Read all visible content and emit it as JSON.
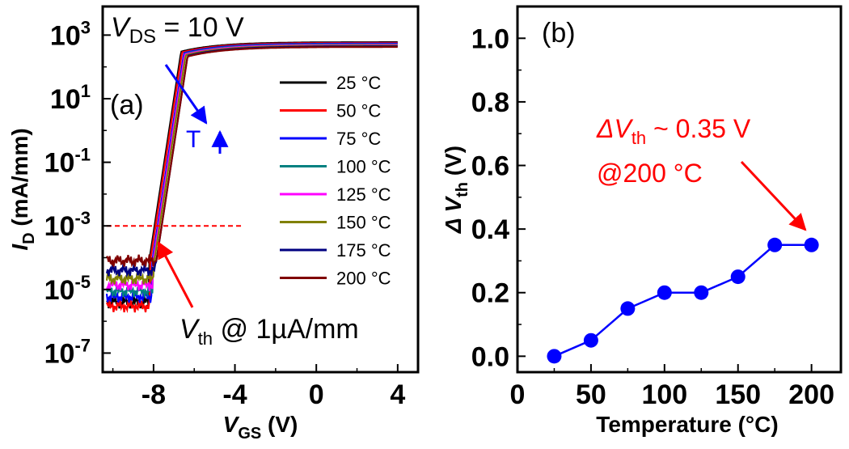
{
  "chart_data": [
    {
      "type": "line",
      "panel_label": "(a)",
      "annotation_vds": {
        "sym": "V",
        "sub": "DS",
        "rest": " = 10 V"
      },
      "annotation_vth": {
        "sym": "V",
        "sub": "th",
        "rest": " @ 1µA/mm"
      },
      "annotation_t": "T",
      "xlabel": {
        "sym": "V",
        "sub": "GS",
        "rest": " (V)"
      },
      "ylabel": {
        "sym": "I",
        "sub": "D",
        "rest": " (mA/mm)"
      },
      "xlim": [
        -10.5,
        5.0
      ],
      "x_ticks": [
        -8,
        -4,
        0,
        4
      ],
      "x_tick_labels": [
        "-8",
        "-4",
        "0",
        "4"
      ],
      "ylim_log10": [
        -7.6,
        3.9
      ],
      "y_ticks_log10": [
        3,
        1,
        -1,
        -3,
        -5,
        -7
      ],
      "y_tick_base": "10",
      "y_tick_exponents": [
        "3",
        "1",
        "-1",
        "-3",
        "-5",
        "-7"
      ],
      "threshold_current": 0.001,
      "model": {
        "x_min": -10.3,
        "x_max": 4.0,
        "Isat": 600,
        "vth_at_25C": -7.95,
        "delta_vth_from_panel_b": true
      },
      "off_state_current": [
        4e-06,
        3e-06,
        6e-06,
        9e-06,
        1.4e-05,
        2.2e-05,
        4e-05,
        8e-05
      ],
      "series": [
        {
          "name": "25 °C",
          "color": "#000000",
          "temp": 25
        },
        {
          "name": "50 °C",
          "color": "#ff0000",
          "temp": 50
        },
        {
          "name": "75 °C",
          "color": "#0000ff",
          "temp": 75
        },
        {
          "name": "100 °C",
          "color": "#008080",
          "temp": 100
        },
        {
          "name": "125 °C",
          "color": "#ff00ff",
          "temp": 125
        },
        {
          "name": "150 °C",
          "color": "#808000",
          "temp": 150
        },
        {
          "name": "175 °C",
          "color": "#000080",
          "temp": 175
        },
        {
          "name": "200 °C",
          "color": "#800000",
          "temp": 200
        }
      ]
    },
    {
      "type": "line",
      "panel_label": "(b)",
      "xlabel": "Temperature (°C)",
      "ylabel": {
        "sym": "Δ V",
        "sub": "th",
        "rest": " (V)"
      },
      "xlim": [
        0,
        220
      ],
      "ylim": [
        -0.05,
        1.1
      ],
      "x_ticks": [
        0,
        50,
        100,
        150,
        200
      ],
      "x_tick_labels": [
        "0",
        "50",
        "100",
        "150",
        "200"
      ],
      "y_ticks": [
        0.0,
        0.2,
        0.4,
        0.6,
        0.8,
        1.0
      ],
      "y_tick_labels": [
        "0.0",
        "0.2",
        "0.4",
        "0.6",
        "0.8",
        "1.0"
      ],
      "x": [
        25,
        50,
        75,
        100,
        125,
        150,
        175,
        200
      ],
      "y": [
        0.0,
        0.05,
        0.15,
        0.2,
        0.2,
        0.25,
        0.35,
        0.35
      ],
      "color": "#0000ff",
      "annotation": {
        "sym": "ΔV",
        "sub": "th",
        "rest": " ~ 0.35 V",
        "line2": "@200 °C",
        "color": "#ff0000"
      }
    }
  ],
  "colors": {
    "axis": "#000000",
    "annotation_red": "#ff0000",
    "annotation_blue": "#0000ff"
  }
}
